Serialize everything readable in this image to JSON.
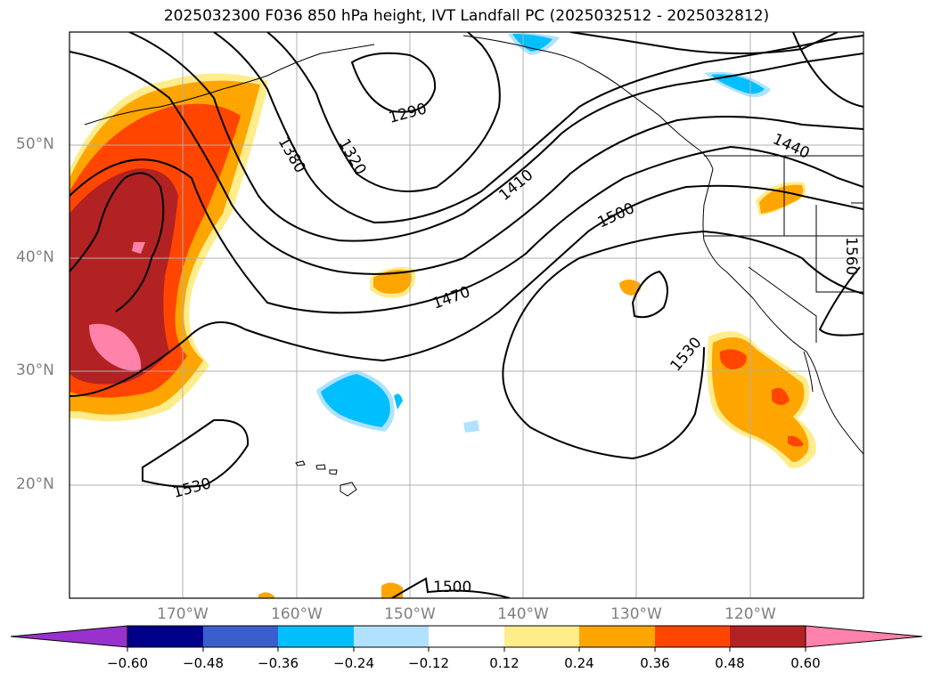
{
  "title": "2025032300 F036 850 hPa height, IVT Landfall PC (2025032512 - 2025032812)",
  "map": {
    "projection": "equirectangular",
    "lon_range": [
      -180,
      -110
    ],
    "lat_range": [
      10,
      60
    ],
    "gridlines": true
  },
  "lat_labels": [
    "50°N",
    "40°N",
    "30°N",
    "20°N"
  ],
  "lon_labels": [
    "170°W",
    "160°W",
    "150°W",
    "140°W",
    "130°W",
    "120°W"
  ],
  "contour_labels": [
    "1290",
    "1320",
    "1380",
    "1410",
    "1440",
    "1470",
    "1500",
    "1500",
    "1530",
    "1530",
    "1560"
  ],
  "colorbar": {
    "ticks": [
      "−0.60",
      "−0.48",
      "−0.36",
      "−0.24",
      "−0.12",
      "0.12",
      "0.24",
      "0.36",
      "0.48",
      "0.60"
    ],
    "colors": [
      "#9932cc",
      "#00008b",
      "#3a5fcd",
      "#00bfff",
      "#b0e2ff",
      "#ffffff",
      "#ffec8b",
      "#ffa500",
      "#ff4500",
      "#b22222",
      "#ff82ab"
    ],
    "extend": "both"
  }
}
